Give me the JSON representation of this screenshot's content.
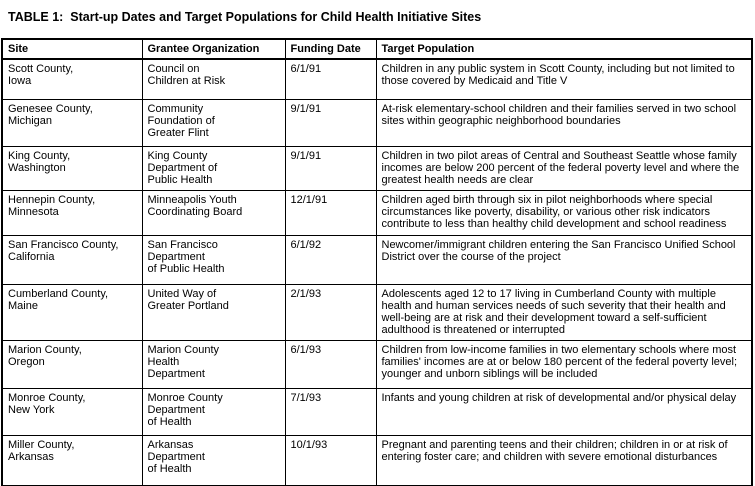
{
  "title": "TABLE 1:  Start-up Dates and Target Populations for Child Health Initiative Sites",
  "table": {
    "headers": [
      "Site",
      "Grantee Organization",
      "Funding Date",
      "Target Population"
    ],
    "rows": [
      {
        "site": "Scott County,\nIowa",
        "grantee": "Council on\nChildren at Risk",
        "funding_date": "6/1/91",
        "target_population": "Children in any public system in Scott County, including but not limited to those covered by Medicaid and Title V"
      },
      {
        "site": "Genesee County,\nMichigan",
        "grantee": "Community\nFoundation of\nGreater Flint",
        "funding_date": "9/1/91",
        "target_population": "At-risk elementary-school children and their families served in two school sites within geographic neighborhood boundaries"
      },
      {
        "site": "King County,\nWashington",
        "grantee": "King County\nDepartment of\nPublic Health",
        "funding_date": "9/1/91",
        "target_population": "Children in two pilot areas of Central and Southeast Seattle whose family incomes are below 200 percent of the federal poverty level and where the greatest health needs are clear"
      },
      {
        "site": "Hennepin County,\nMinnesota",
        "grantee": "Minneapolis Youth\nCoordinating Board",
        "funding_date": "12/1/91",
        "target_population": "Children aged birth through six in pilot neighborhoods where special circumstances like poverty, disability, or various other risk indicators contribute to less than healthy child development and school readiness"
      },
      {
        "site": "San Francisco County,\nCalifornia",
        "grantee": "San Francisco\nDepartment\nof Public Health",
        "funding_date": "6/1/92",
        "target_population": "Newcomer/immigrant children entering the San Francisco Unified School District over the course of the project"
      },
      {
        "site": "Cumberland County,\nMaine",
        "grantee": "United Way of\nGreater Portland",
        "funding_date": "2/1/93",
        "target_population": "Adolescents aged 12 to 17 living in Cumberland County with multiple health and human services needs of such severity that their health and well-being are at risk and their development toward a self-sufficient adulthood is threatened or interrupted"
      },
      {
        "site": "Marion County,\nOregon",
        "grantee": "Marion County\nHealth\nDepartment",
        "funding_date": "6/1/93",
        "target_population": "Children from low-income families in two elementary schools where most families' incomes are at or below 180 percent of the federal poverty level; younger and unborn siblings will be included"
      },
      {
        "site": "Monroe County,\nNew York",
        "grantee": "Monroe County\nDepartment\nof Health",
        "funding_date": "7/1/93",
        "target_population": "Infants and young children at risk of developmental and/or physical delay"
      },
      {
        "site": "Miller County,\nArkansas",
        "grantee": "Arkansas\nDepartment\nof Health",
        "funding_date": "10/1/93",
        "target_population": "Pregnant and parenting teens and their children; children in or at risk of entering foster care; and children with severe emotional disturbances"
      }
    ]
  }
}
